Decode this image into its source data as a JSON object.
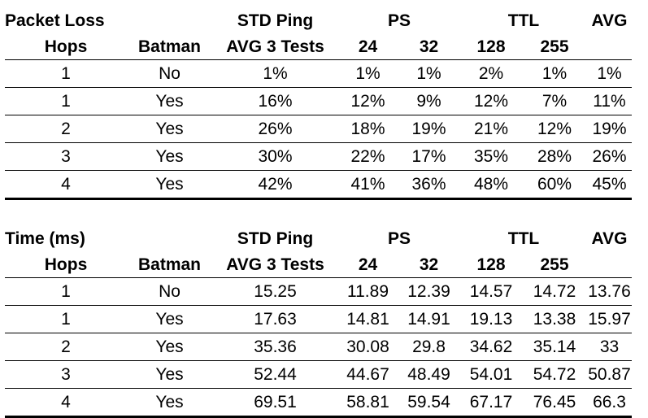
{
  "tables": [
    {
      "title": "Packet Loss",
      "header1": {
        "std": "STD Ping",
        "ps": "PS",
        "ttl": "TTL",
        "avg": "AVG"
      },
      "header2": {
        "hops": "Hops",
        "batman": "Batman",
        "std": "AVG 3 Tests",
        "ps24": "24",
        "ps32": "32",
        "ttl128": "128",
        "ttl255": "255"
      },
      "rows": [
        {
          "hops": "1",
          "batman": "No",
          "std": "1%",
          "ps24": "1%",
          "ps32": "1%",
          "ttl128": "2%",
          "ttl255": "1%",
          "avg": "1%"
        },
        {
          "hops": "1",
          "batman": "Yes",
          "std": "16%",
          "ps24": "12%",
          "ps32": "9%",
          "ttl128": "12%",
          "ttl255": "7%",
          "avg": "11%"
        },
        {
          "hops": "2",
          "batman": "Yes",
          "std": "26%",
          "ps24": "18%",
          "ps32": "19%",
          "ttl128": "21%",
          "ttl255": "12%",
          "avg": "19%"
        },
        {
          "hops": "3",
          "batman": "Yes",
          "std": "30%",
          "ps24": "22%",
          "ps32": "17%",
          "ttl128": "35%",
          "ttl255": "28%",
          "avg": "26%"
        },
        {
          "hops": "4",
          "batman": "Yes",
          "std": "42%",
          "ps24": "41%",
          "ps32": "36%",
          "ttl128": "48%",
          "ttl255": "60%",
          "avg": "45%"
        }
      ]
    },
    {
      "title": "Time (ms)",
      "header1": {
        "std": "STD Ping",
        "ps": "PS",
        "ttl": "TTL",
        "avg": "AVG"
      },
      "header2": {
        "hops": "Hops",
        "batman": "Batman",
        "std": "AVG 3 Tests",
        "ps24": "24",
        "ps32": "32",
        "ttl128": "128",
        "ttl255": "255"
      },
      "rows": [
        {
          "hops": "1",
          "batman": "No",
          "std": "15.25",
          "ps24": "11.89",
          "ps32": "12.39",
          "ttl128": "14.57",
          "ttl255": "14.72",
          "avg": "13.76"
        },
        {
          "hops": "1",
          "batman": "Yes",
          "std": "17.63",
          "ps24": "14.81",
          "ps32": "14.91",
          "ttl128": "19.13",
          "ttl255": "13.38",
          "avg": "15.97"
        },
        {
          "hops": "2",
          "batman": "Yes",
          "std": "35.36",
          "ps24": "30.08",
          "ps32": "29.8",
          "ttl128": "34.62",
          "ttl255": "35.14",
          "avg": "33"
        },
        {
          "hops": "3",
          "batman": "Yes",
          "std": "52.44",
          "ps24": "44.67",
          "ps32": "48.49",
          "ttl128": "54.01",
          "ttl255": "54.72",
          "avg": "50.87"
        },
        {
          "hops": "4",
          "batman": "Yes",
          "std": "69.51",
          "ps24": "58.81",
          "ps32": "59.54",
          "ttl128": "67.17",
          "ttl255": "76.45",
          "avg": "66.3"
        }
      ]
    }
  ]
}
